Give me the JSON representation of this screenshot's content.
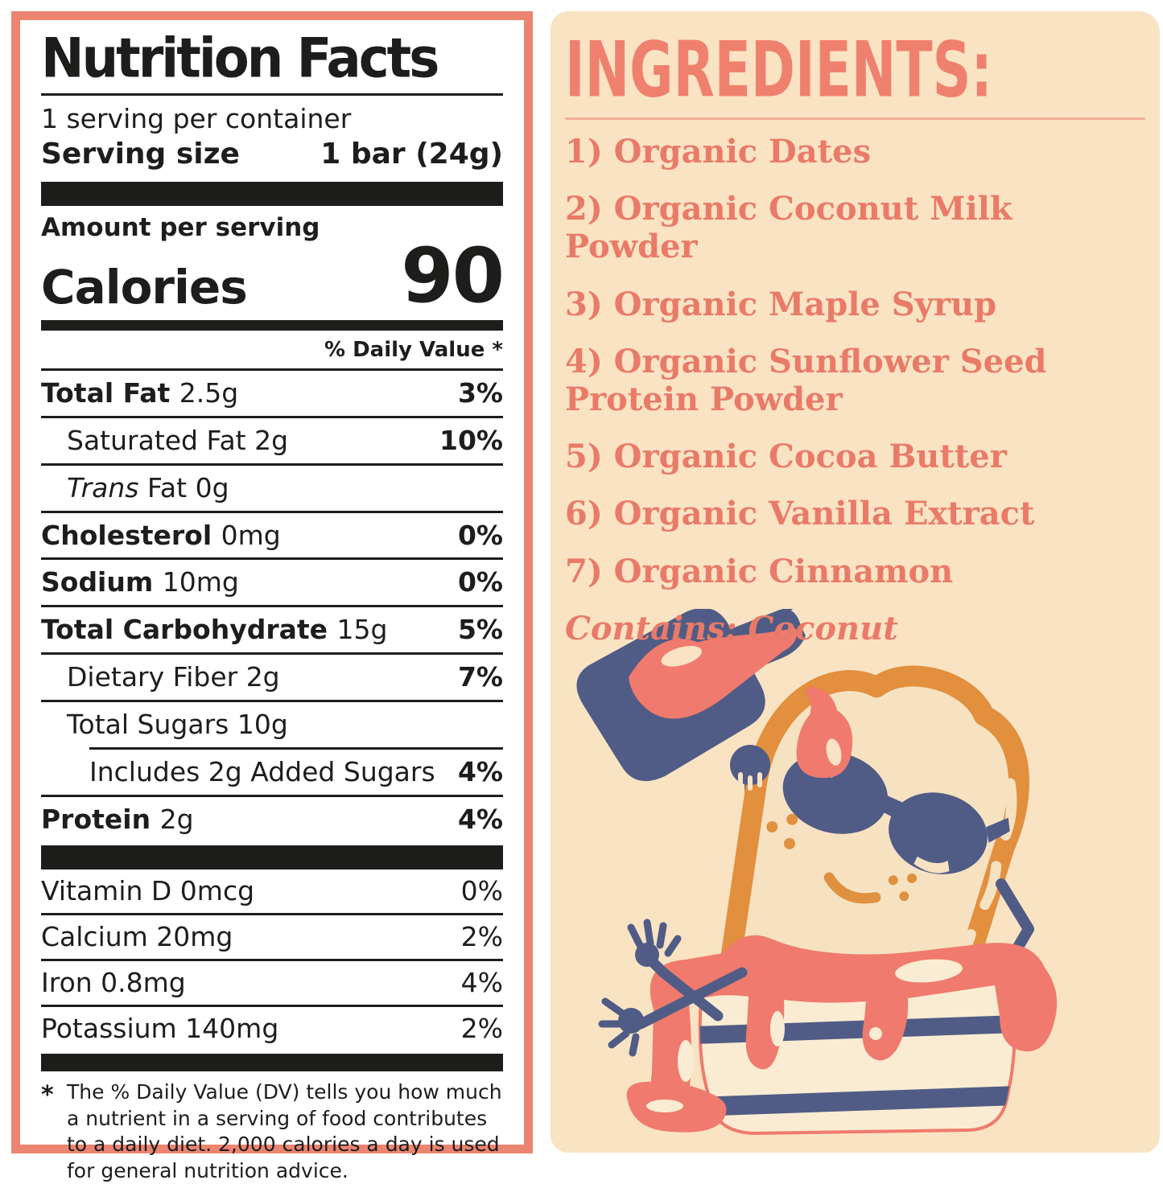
{
  "nutrition_label": {
    "title": "Nutrition Facts",
    "servings_per_container": "1 serving per container",
    "serving_size": {
      "label": "Serving size",
      "value": "1 bar (24g)"
    },
    "amount_per_serving": "Amount per serving",
    "calories": {
      "label": "Calories",
      "value": "90"
    },
    "daily_value_header": "% Daily Value *",
    "nutrient_rows": [
      {
        "name": "Total Fat",
        "amount": "2.5g",
        "dv": "3%",
        "indent": 0,
        "bold": true,
        "italic_prefix": null,
        "rule": "none"
      },
      {
        "name": "Saturated Fat",
        "amount": "2g",
        "dv": "10%",
        "indent": 1,
        "bold": false,
        "italic_prefix": null,
        "rule": "full"
      },
      {
        "name": "Fat",
        "amount": "0g",
        "dv": "",
        "indent": 1,
        "bold": false,
        "italic_prefix": "Trans",
        "rule": "full"
      },
      {
        "name": "Cholesterol",
        "amount": "0mg",
        "dv": "0%",
        "indent": 0,
        "bold": true,
        "italic_prefix": null,
        "rule": "full"
      },
      {
        "name": "Sodium",
        "amount": "10mg",
        "dv": "0%",
        "indent": 0,
        "bold": true,
        "italic_prefix": null,
        "rule": "full"
      },
      {
        "name": "Total Carbohydrate",
        "amount": "15g",
        "dv": "5%",
        "indent": 0,
        "bold": true,
        "italic_prefix": null,
        "rule": "full"
      },
      {
        "name": "Dietary Fiber",
        "amount": "2g",
        "dv": "7%",
        "indent": 1,
        "bold": false,
        "italic_prefix": null,
        "rule": "full"
      },
      {
        "name": "Total Sugars",
        "amount": "10g",
        "dv": "",
        "indent": 1,
        "bold": false,
        "italic_prefix": null,
        "rule": "full"
      },
      {
        "name": "Includes 2g Added Sugars",
        "amount": "",
        "dv": "4%",
        "indent": 2,
        "bold": false,
        "italic_prefix": null,
        "rule": "inset"
      },
      {
        "name": "Protein",
        "amount": "2g",
        "dv": "4%",
        "indent": 0,
        "bold": true,
        "italic_prefix": null,
        "rule": "full"
      }
    ],
    "vitamin_rows": [
      {
        "name": "Vitamin D",
        "amount": "0mcg",
        "dv": "0%"
      },
      {
        "name": "Calcium",
        "amount": "20mg",
        "dv": "2%"
      },
      {
        "name": "Iron",
        "amount": "0.8mg",
        "dv": "4%"
      },
      {
        "name": "Potassium",
        "amount": "140mg",
        "dv": "2%"
      }
    ],
    "footnote": {
      "symbol": "*",
      "text": "The % Daily Value (DV) tells you how much a nutrient in a serving of food contributes to a daily diet. 2,000 calories a day is used for general nutrition advice."
    }
  },
  "ingredients_panel": {
    "heading": "INGREDIENTS:",
    "items": [
      "1) Organic Dates",
      "2) Organic Coconut Milk Powder",
      "3) Organic Maple Syrup",
      "4) Organic Sunflower Seed Protein Powder",
      "5) Organic Cocoa Butter",
      "6) Organic Vanilla Extract",
      "7) Organic Cinnamon"
    ],
    "contains": "Contains: Coconut",
    "illustration_alt": "Cartoon toast slice wearing sunglasses pouring maple syrup over itself while sitting in a striped butter tub"
  },
  "colors": {
    "label_border": "#EC8470",
    "panel_background": "#F9E3C3",
    "heading_coral": "#F0806E",
    "ingredients_text": "#EA7A68",
    "illustration_navy": "#505C86",
    "crust_orange": "#E28F3E",
    "syrup_coral": "#F07A6D",
    "tub_cream": "#FAECD3",
    "label_text": "#1d1d1b"
  }
}
